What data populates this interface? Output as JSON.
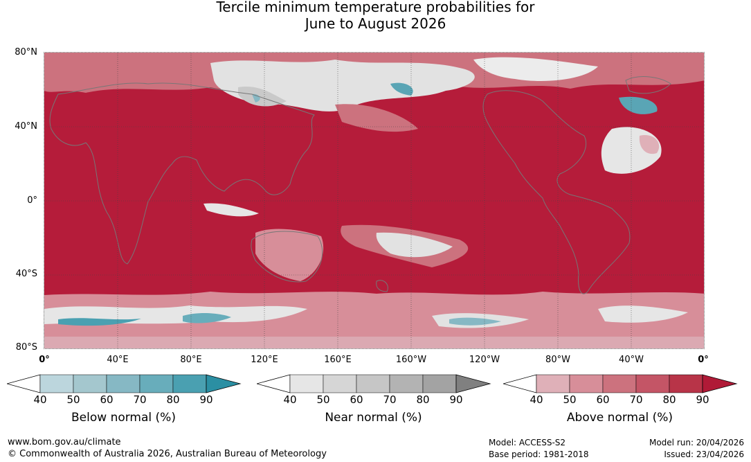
{
  "title": {
    "line1": "Tercile minimum temperature probabilities for",
    "line2": "June to August 2026"
  },
  "map": {
    "lat_labels": [
      "80°N",
      "40°N",
      "0°",
      "40°S",
      "80°S"
    ],
    "lon_labels": [
      "0°",
      "40°E",
      "80°E",
      "120°E",
      "160°E",
      "160°W",
      "120°W",
      "80°W",
      "40°W",
      "0°"
    ],
    "colors": {
      "above_dominant": "#b51c3a",
      "above_light": "#dba9b2",
      "near_normal": "#e4e4e4",
      "below_normal": "#4a9fb0",
      "coastline": "#777777"
    }
  },
  "legends": [
    {
      "title": "Below normal (%)",
      "ticks": [
        "40",
        "50",
        "60",
        "70",
        "80",
        "90"
      ],
      "colors": [
        "#ffffff",
        "#bcd6dd",
        "#a4c7ce",
        "#86b8c4",
        "#68adbb",
        "#4aa0b1",
        "#2b8fa3"
      ]
    },
    {
      "title": "Near normal (%)",
      "ticks": [
        "40",
        "50",
        "60",
        "70",
        "80",
        "90"
      ],
      "colors": [
        "#ffffff",
        "#e6e6e6",
        "#d6d6d6",
        "#c6c6c6",
        "#b3b3b3",
        "#a3a3a3",
        "#808080"
      ]
    },
    {
      "title": "Above normal (%)",
      "ticks": [
        "40",
        "50",
        "60",
        "70",
        "80",
        "90"
      ],
      "colors": [
        "#ffffff",
        "#dfb0b8",
        "#d78e99",
        "#cc727e",
        "#c45566",
        "#b83448",
        "#b01a37"
      ]
    }
  ],
  "footer": {
    "website": "www.bom.gov.au/climate",
    "copyright": "© Commonwealth of Australia 2026, Australian Bureau of Meteorology",
    "model": "Model: ACCESS-S2",
    "base_period": "Base period: 1981-2018",
    "model_run": "Model run: 20/04/2026",
    "issued": "Issued: 23/04/2026"
  }
}
